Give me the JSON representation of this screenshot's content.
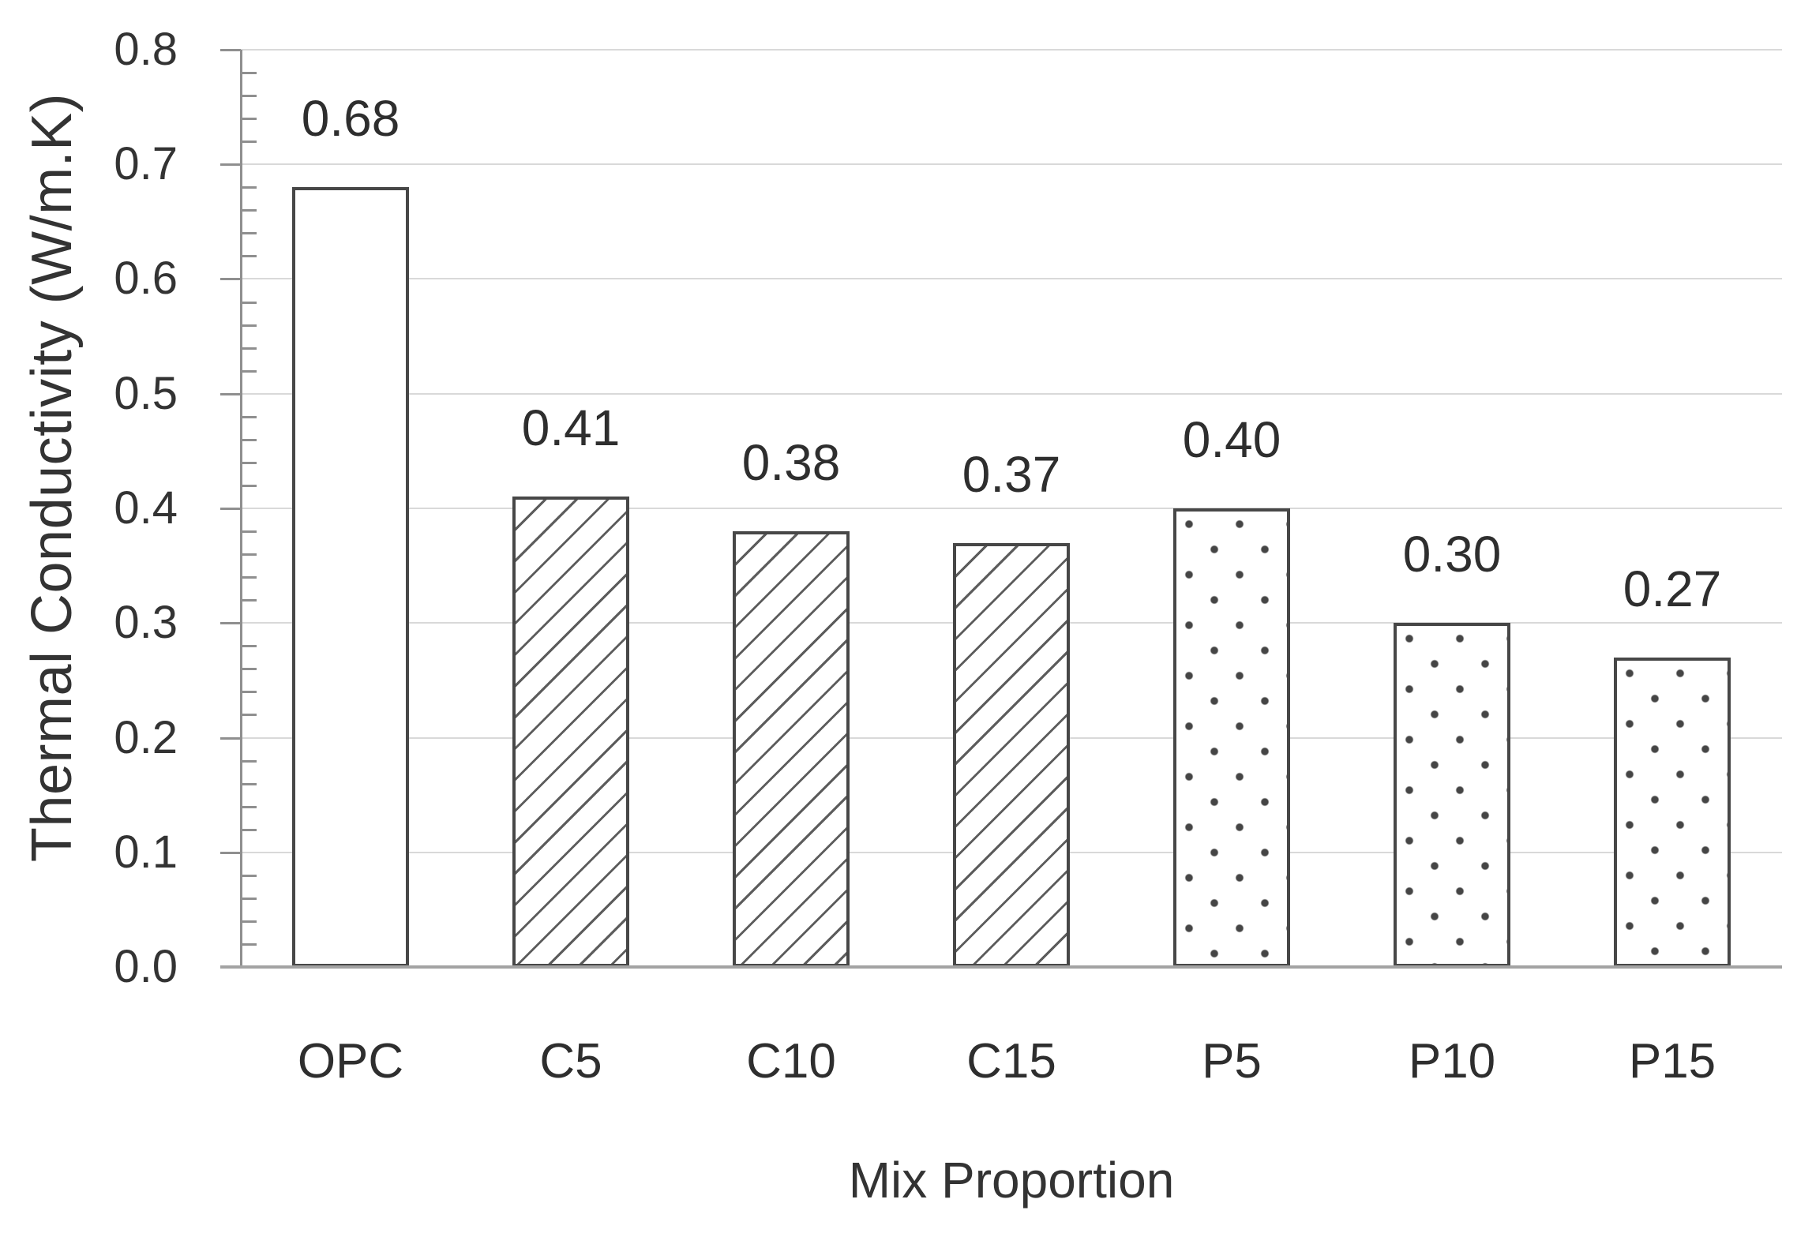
{
  "chart_data": {
    "type": "bar",
    "title": "",
    "categories": [
      "OPC",
      "C5",
      "C10",
      "C15",
      "P5",
      "P10",
      "P15"
    ],
    "values": [
      0.68,
      0.41,
      0.38,
      0.37,
      0.4,
      0.3,
      0.27
    ],
    "value_labels": [
      "0.68",
      "0.41",
      "0.38",
      "0.37",
      "0.40",
      "0.30",
      "0.27"
    ],
    "bar_patterns": [
      "plain",
      "hatch",
      "hatch",
      "hatch",
      "dots",
      "dots",
      "dots"
    ],
    "xlabel": "Mix Proportion",
    "ylabel": "Thermal Conductivity (W/m.K)",
    "ylim": [
      0.0,
      0.8
    ],
    "ytick_step": 0.1,
    "ytick_labels": [
      "0.0",
      "0.1",
      "0.2",
      "0.3",
      "0.4",
      "0.5",
      "0.6",
      "0.7",
      "0.8"
    ],
    "minor_tick_step": 0.02,
    "grid": "horizontal-major",
    "legend": "none"
  },
  "colors": {
    "background": "#ffffff",
    "text": "#333333",
    "gridline": "#d9d9d9",
    "axis_line": "#8f8f8f",
    "baseline": "#a3a3a3",
    "bar_outline": "#474747",
    "bar_fill": "#ffffff",
    "hatch_line": "#5c5c5c",
    "dot_fill": "#454545"
  }
}
